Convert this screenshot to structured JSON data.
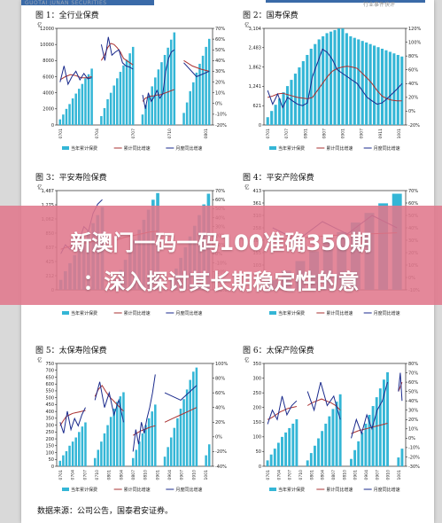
{
  "header": {
    "brand": "GUOTAI JUNAN SECURITIES",
    "industry": "行业事件快评"
  },
  "overlay": {
    "line1": "新澳门一码一码100准确350期",
    "line2": "：深入探讨其长期稳定性的意"
  },
  "source": "数据来源：公司公告，国泰君安证券。",
  "legend": {
    "bar": "当年累计保费",
    "cum": "累计同比增速",
    "mon": "月度同比增速"
  },
  "colors": {
    "bar": "#34b6d6",
    "cum": "#a93030",
    "mon": "#1a2a8c",
    "header": "#3a6aa8"
  },
  "panels": [
    {
      "title": "图 1：全行业保费",
      "unit": "亿",
      "yleft": [
        "0",
        "2000",
        "4000",
        "6000",
        "8000",
        "10000",
        "12000"
      ],
      "yright": [
        "-20%",
        "-10%",
        "0%",
        "10%",
        "20%",
        "30%",
        "40%",
        "50%",
        "60%",
        "70%"
      ],
      "xticks": [
        "0701",
        "0704",
        "0707",
        "0710",
        "0801"
      ]
    },
    {
      "title": "图 2：国寿保费",
      "unit": "亿",
      "yleft": [
        "0",
        "621",
        "1,241",
        "1,862",
        "2,483",
        "3,104"
      ],
      "yright": [
        "-20%",
        "0%",
        "20%",
        "40%",
        "60%",
        "80%",
        "100%",
        "120%"
      ],
      "xticks": [
        "0701",
        "0707",
        "0801",
        "0807",
        "0901",
        "0907",
        "0911",
        "1001"
      ]
    },
    {
      "title": "图 3：平安寿险保费",
      "unit": "亿",
      "yleft": [
        "0",
        "212",
        "425",
        "637",
        "850",
        "1,062",
        "1,275",
        "1,487"
      ],
      "yright": [
        "-40%",
        "-30%",
        "-20%",
        "-10%",
        "0%",
        "10%",
        "20%",
        "30%",
        "40%",
        "50%",
        "60%",
        "70%"
      ],
      "xticks": []
    },
    {
      "title": "图 4：平安产险保费",
      "unit": "亿",
      "yleft": [
        "0",
        "52",
        "103",
        "155",
        "206",
        "258",
        "310",
        "361",
        "413"
      ],
      "yright": [
        "-10%",
        "0%",
        "10%",
        "20%",
        "30%",
        "40%",
        "50%",
        "60%",
        "70%"
      ],
      "xticks": []
    },
    {
      "title": "图 5：太保寿险保费",
      "unit": "亿",
      "yleft": [
        "0",
        "50",
        "100",
        "150",
        "200",
        "250",
        "300",
        "350",
        "400",
        "450",
        "500",
        "550",
        "600",
        "650",
        "700",
        "750"
      ],
      "yright": [
        "-40%",
        "-20%",
        "0%",
        "20%",
        "40%",
        "60%",
        "80%",
        "100%"
      ],
      "xticks": [
        "0701",
        "0704",
        "0707",
        "0710",
        "0801",
        "0804",
        "0807",
        "0810",
        "0901",
        "0904",
        "0907",
        "0910",
        "1001"
      ]
    },
    {
      "title": "图 6：太保产险保费",
      "unit": "亿",
      "yleft": [
        "0",
        "50",
        "100",
        "150",
        "200",
        "250",
        "300",
        "350"
      ],
      "yright": [
        "-30%",
        "-20%",
        "-10%",
        "0%",
        "10%",
        "20%",
        "30%",
        "40%",
        "50%",
        "60%",
        "70%",
        "80%"
      ],
      "xticks": [
        "0701",
        "0704",
        "0707",
        "0710",
        "0801",
        "0804",
        "0807",
        "0810",
        "0901",
        "0904",
        "0907",
        "0910",
        "1001"
      ]
    }
  ],
  "chart_data": [
    {
      "type": "bar",
      "title": "全行业保费",
      "ylabel": "亿",
      "ylim": [
        0,
        12000
      ],
      "y2lim": [
        -0.2,
        0.7
      ],
      "series": [
        {
          "name": "当年累计保费",
          "kind": "bar",
          "segments": [
            [
              700,
              1300,
              2000,
              2600,
              3300,
              3900,
              4500,
              5100,
              5800,
              6300,
              7000
            ],
            [
              1100,
              2100,
              3200,
              4000,
              4900,
              5800,
              6600,
              7400,
              8100,
              8900,
              9700
            ],
            [
              1300,
              2500,
              3700,
              4800,
              5900,
              6900,
              7800,
              8700,
              9600,
              10600,
              11500
            ],
            [
              1500,
              2800,
              4200,
              5300,
              6500,
              7600,
              8600,
              9700,
              10700
            ]
          ]
        },
        {
          "name": "累计同比增速",
          "kind": "line",
          "segments": [
            [
              0.22,
              0.25,
              0.27,
              0.26,
              0.24,
              0.24,
              0.25
            ],
            [
              0.4,
              0.45,
              0.52,
              0.56,
              0.55,
              0.52,
              0.48,
              0.42,
              0.4,
              0.38,
              0.36
            ],
            [
              0.02,
              0.05,
              0.06,
              0.07,
              0.07,
              0.08,
              0.08,
              0.09,
              0.1,
              0.11,
              0.12,
              0.13
            ],
            [
              0.4,
              0.35,
              0.32,
              0.3
            ]
          ]
        },
        {
          "name": "月度同比增速",
          "kind": "line",
          "segments": [
            [
              0.2,
              0.35,
              0.18,
              0.25,
              0.3,
              0.22,
              0.28,
              0.23,
              0.24
            ],
            [
              0.55,
              0.4,
              0.62,
              0.45,
              0.48,
              0.5,
              0.38,
              0.35,
              0.34,
              0.32
            ],
            [
              0.08,
              -0.05,
              0.1,
              0.02,
              0.06,
              0.12,
              0.05,
              0.09,
              0.3,
              0.42,
              0.48,
              0.5
            ],
            [
              0.38,
              0.25,
              0.3
            ]
          ]
        }
      ]
    },
    {
      "type": "bar",
      "title": "国寿保费",
      "ylabel": "亿",
      "ylim": [
        0,
        3104
      ],
      "y2lim": [
        -0.2,
        1.2
      ],
      "series": [
        {
          "name": "当年累计保费",
          "kind": "bar",
          "segments": [
            [
              250,
              450,
              650,
              850,
              1050,
              1250,
              1450,
              1650,
              1850,
              2050,
              2250,
              2450,
              2600,
              2750,
              2850,
              2950,
              3000,
              3050,
              3100,
              3100,
              2950,
              2850,
              2800,
              2750,
              2700,
              2650,
              2600,
              2550,
              2500,
              2450,
              2400,
              2350,
              2300,
              2250,
              2200
            ]
          ]
        },
        {
          "name": "累计同比增速",
          "kind": "line",
          "segments": [
            [
              0.2,
              0.22,
              0.25,
              0.26,
              0.24,
              0.22,
              0.2,
              0.19,
              0.18,
              0.2,
              0.3,
              0.4,
              0.5,
              0.58,
              0.62,
              0.64,
              0.65,
              0.64,
              0.62,
              0.55,
              0.48,
              0.4,
              0.3,
              0.22,
              0.18,
              0.16,
              0.15,
              0.15
            ]
          ]
        },
        {
          "name": "月度同比增速",
          "kind": "line",
          "segments": [
            [
              0.3,
              0.1,
              0.25,
              0.05,
              0.2,
              0.15,
              0.1,
              0.08,
              0.12,
              0.5,
              0.7,
              0.9,
              0.85,
              0.75,
              0.6,
              0.55,
              0.5,
              0.45,
              0.4,
              0.3,
              0.2,
              0.15,
              0.1,
              0.12,
              0.18,
              0.25,
              0.32,
              0.4
            ]
          ]
        }
      ]
    },
    {
      "type": "bar",
      "title": "平安寿险保费",
      "ylabel": "亿",
      "ylim": [
        0,
        1487
      ],
      "y2lim": [
        -0.4,
        0.7
      ],
      "series": [
        {
          "name": "当年累计保费",
          "kind": "bar",
          "segments": [
            [
              150,
              280,
              400,
              520,
              640,
              760,
              880,
              1000,
              1120,
              1240
            ],
            [
              150,
              300,
              450,
              600,
              750,
              900,
              1050,
              1200,
              1350,
              1450
            ],
            [
              160,
              320,
              480,
              640,
              800,
              960,
              1120,
              1280,
              1440
            ]
          ]
        },
        {
          "name": "累计同比增速",
          "kind": "line",
          "segments": [
            [
              0.05,
              0.08,
              0.1,
              0.12,
              0.14,
              0.16
            ],
            [
              0.15,
              0.18,
              0.2,
              0.22,
              0.24,
              0.25
            ]
          ]
        },
        {
          "name": "月度同比增速",
          "kind": "line",
          "segments": [
            [
              0.0,
              0.1,
              0.05,
              0.2,
              0.15,
              0.3,
              0.25,
              0.45,
              0.55,
              0.6
            ]
          ]
        }
      ]
    },
    {
      "type": "bar",
      "title": "平安产险保费",
      "ylabel": "亿",
      "ylim": [
        0,
        413
      ],
      "y2lim": [
        -0.1,
        0.7
      ],
      "series": [
        {
          "name": "当年累计保费",
          "kind": "bar",
          "segments": [
            [
              40,
              80,
              120,
              160,
              200,
              240,
              280,
              320,
              360,
              400
            ]
          ]
        },
        {
          "name": "累计同比增速",
          "kind": "line",
          "segments": [
            [
              0.3,
              0.32,
              0.34,
              0.35,
              0.36
            ]
          ]
        },
        {
          "name": "月度同比增速",
          "kind": "line",
          "segments": [
            [
              0.4,
              0.3,
              0.45,
              0.35,
              0.5,
              0.4
            ]
          ]
        }
      ]
    },
    {
      "type": "bar",
      "title": "太保寿险保费",
      "ylabel": "亿",
      "ylim": [
        0,
        750
      ],
      "y2lim": [
        -0.4,
        1.0
      ],
      "series": [
        {
          "name": "当年累计保费",
          "kind": "bar",
          "segments": [
            [
              40,
              80,
              110,
              150,
              180,
              210,
              250,
              290,
              320
            ],
            [
              60,
              120,
              180,
              240,
              300,
              360,
              420,
              470,
              510,
              540
            ],
            [
              60,
              120,
              180,
              240,
              300,
              350,
              400,
              450
            ],
            [
              70,
              140,
              210,
              280,
              350,
              420,
              490,
              560,
              630,
              690,
              720
            ],
            [
              80,
              160
            ]
          ]
        },
        {
          "name": "累计同比增速",
          "kind": "line",
          "segments": [
            [
              0.15,
              0.22,
              0.28,
              0.3,
              0.32,
              0.33,
              0.34,
              0.35,
              0.36
            ],
            [
              0.55,
              0.65,
              0.7,
              0.62,
              0.55,
              0.5,
              0.45,
              0.4,
              0.35
            ],
            [
              0.02,
              0.05,
              0.08,
              0.1,
              0.12,
              0.14,
              0.15
            ],
            [
              0.2,
              0.25,
              0.3,
              0.35,
              0.4
            ]
          ]
        },
        {
          "name": "月度同比增速",
          "kind": "line",
          "segments": [
            [
              0.2,
              0.05,
              0.35,
              0.1,
              0.25,
              0.15,
              0.3,
              0.4
            ],
            [
              0.5,
              0.75,
              0.4,
              0.6,
              0.3,
              0.5,
              0.2
            ],
            [
              -0.2,
              0.1,
              -0.1,
              0.2,
              0.05,
              0.25,
              0.4,
              0.6,
              0.85
            ],
            [
              0.6,
              0.5,
              0.7
            ]
          ]
        }
      ]
    },
    {
      "type": "bar",
      "title": "太保产险保费",
      "ylabel": "亿",
      "ylim": [
        0,
        350
      ],
      "y2lim": [
        -0.3,
        0.8
      ],
      "series": [
        {
          "name": "当年累计保费",
          "kind": "bar",
          "segments": [
            [
              20,
              40,
              60,
              80,
              100,
              115,
              130,
              145,
              160
            ],
            [
              20,
              45,
              70,
              95,
              120,
              145,
              170,
              195,
              220,
              245
            ],
            [
              25,
              55,
              85,
              115,
              145,
              175,
              205,
              235,
              265,
              295,
              320
            ],
            [
              30,
              60
            ]
          ]
        },
        {
          "name": "累计同比增速",
          "kind": "line",
          "segments": [
            [
              0.2,
              0.22,
              0.25,
              0.28,
              0.3,
              0.32,
              0.33,
              0.34
            ],
            [
              0.35,
              0.38,
              0.4,
              0.42,
              0.4,
              0.38,
              0.35,
              0.3
            ],
            [
              0.05,
              0.08,
              0.1,
              0.12,
              0.14,
              0.16
            ],
            [
              0.5,
              0.55,
              0.6
            ]
          ]
        },
        {
          "name": "月度同比增速",
          "kind": "line",
          "segments": [
            [
              0.15,
              0.3,
              0.2,
              0.45,
              0.25,
              0.35,
              0.4
            ],
            [
              0.5,
              0.3,
              0.6,
              0.35,
              0.45,
              0.2
            ],
            [
              0.0,
              0.2,
              0.05,
              0.25,
              0.1,
              0.3,
              0.4,
              0.6
            ],
            [
              0.5,
              0.7,
              0.4
            ]
          ]
        }
      ]
    }
  ]
}
